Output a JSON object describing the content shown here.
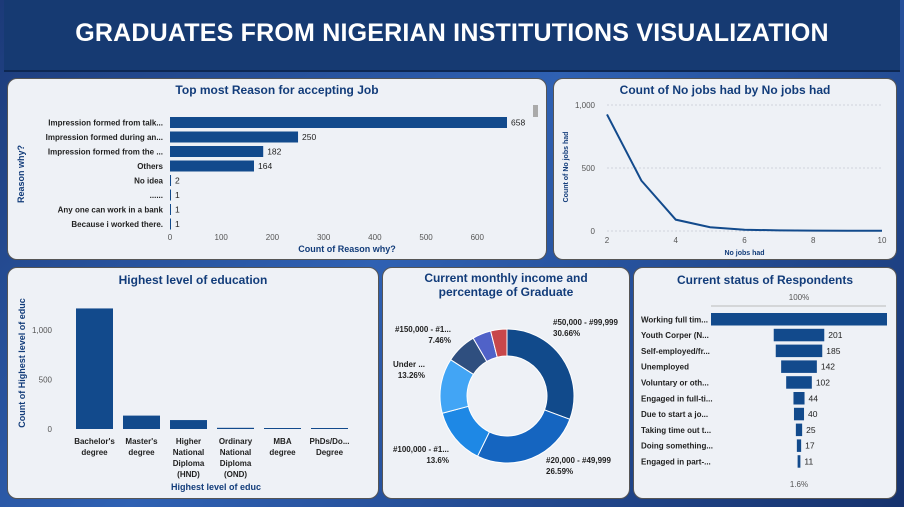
{
  "page": {
    "title": "GRADUATES FROM NIGERIAN INSTITUTIONS VISUALIZATION"
  },
  "colors": {
    "bar": "#124a8c",
    "header": "#163a72",
    "title": "#123c7a"
  },
  "chart_data": [
    {
      "id": "reason",
      "type": "bar",
      "orientation": "horizontal",
      "title": "Top most Reason for accepting Job",
      "xlabel": "Count of Reason why?",
      "ylabel": "Reason why?",
      "categories": [
        "Impression formed from talk...",
        "Impression formed during an...",
        "Impression formed from the ...",
        "Others",
        "No idea",
        "......",
        "Any one can work in a bank",
        "Because i worked there."
      ],
      "values": [
        658,
        250,
        182,
        164,
        2,
        1,
        1,
        1
      ],
      "xlim": [
        0,
        700
      ],
      "xticks": [
        0,
        100,
        200,
        300,
        400,
        500,
        600
      ]
    },
    {
      "id": "nojobs",
      "type": "line",
      "title": "Count of No jobs had by No jobs had",
      "xlabel": "No jobs had",
      "ylabel": "Count of No jobs had",
      "x": [
        2,
        3,
        4,
        5,
        6,
        7,
        8,
        9,
        10
      ],
      "values": [
        925,
        400,
        90,
        30,
        10,
        5,
        3,
        2,
        2
      ],
      "xlim": [
        2,
        10
      ],
      "ylim": [
        0,
        1000
      ],
      "xticks": [
        "2",
        "4",
        "6",
        "8",
        "10"
      ],
      "yticks": [
        "0",
        "500",
        "1,000"
      ]
    },
    {
      "id": "education",
      "type": "bar",
      "title": "Highest level of education",
      "xlabel": "Highest level of educ",
      "ylabel": "Count of Highest level of educ",
      "categories": [
        "Bachelor's degree",
        "Master's degree",
        "Higher National Diploma (HND)",
        "Ordinary National Diploma (OND)",
        "MBA degree",
        "PhDs/Do... Degree"
      ],
      "values": [
        1215,
        135,
        90,
        12,
        10,
        8
      ],
      "ylim": [
        0,
        1300
      ],
      "yticks": [
        "0",
        "500",
        "1,000"
      ]
    },
    {
      "id": "income",
      "type": "pie",
      "title": "Current monthly income and percentage of Graduate",
      "labels": [
        "#50,000 - #99,999",
        "#20,000 - #49,999",
        "#100,000 - #1...",
        "Under ...",
        "#150,000 - #1...",
        "",
        ""
      ],
      "values": [
        30.66,
        26.59,
        13.6,
        13.26,
        7.46,
        4.5,
        3.93
      ],
      "percent_labels": [
        "30.66%",
        "26.59%",
        "13.6%",
        "13.26%",
        "7.46%",
        "",
        ""
      ],
      "colors": [
        "#114a8b",
        "#1565c0",
        "#1e88e5",
        "#42a5f5",
        "#2f4f7f",
        "#5062c8",
        "#c8474a"
      ]
    },
    {
      "id": "status",
      "type": "bar",
      "orientation": "funnel",
      "title": "Current status of Respondents",
      "top_label": "100%",
      "bottom_label": "1.6%",
      "categories": [
        "Working full tim...",
        "Youth Corper (N...",
        "Self-employed/fr...",
        "Unemployed",
        "Voluntary or oth...",
        "Engaged in full-ti...",
        "Due to start a jo...",
        "Taking time out t...",
        "Doing something...",
        "Engaged in part-..."
      ],
      "values": [
        700,
        201,
        185,
        142,
        102,
        44,
        40,
        25,
        17,
        11
      ],
      "value_labels": [
        "",
        "201",
        "185",
        "142",
        "102",
        "44",
        "40",
        "25",
        "17",
        "11"
      ]
    }
  ]
}
